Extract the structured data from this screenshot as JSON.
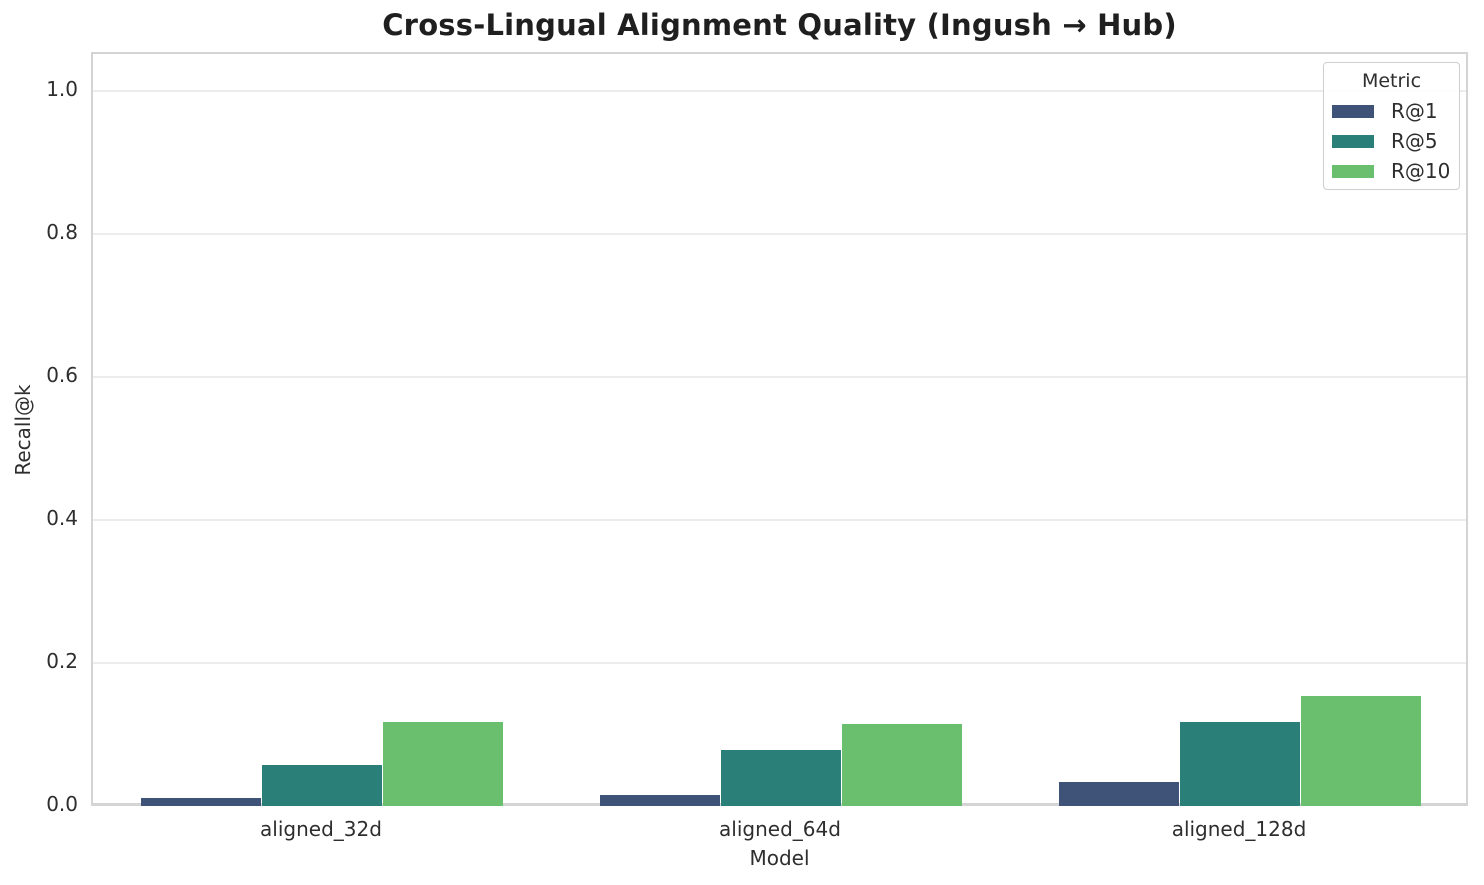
{
  "chart_data": {
    "type": "bar",
    "title": "Cross-Lingual Alignment Quality (Ingush → Hub)",
    "xlabel": "Model",
    "ylabel": "Recall@k",
    "categories": [
      "aligned_32d",
      "aligned_64d",
      "aligned_128d"
    ],
    "series": [
      {
        "name": "R@1",
        "color": "#3f5278",
        "values": [
          0.011,
          0.015,
          0.034
        ]
      },
      {
        "name": "R@5",
        "color": "#2a8078",
        "values": [
          0.058,
          0.079,
          0.118
        ]
      },
      {
        "name": "R@10",
        "color": "#69bf6d",
        "values": [
          0.118,
          0.114,
          0.154
        ]
      }
    ],
    "ylim": [
      0.0,
      1.05
    ],
    "yticks": [
      0.0,
      0.2,
      0.4,
      0.6,
      0.8,
      1.0
    ],
    "ytick_labels": [
      "0.0",
      "0.2",
      "0.4",
      "0.6",
      "0.8",
      "1.0"
    ],
    "legend_title": "Metric",
    "legend_position": "upper right",
    "grid": "horizontal",
    "colors": {
      "background": "#ffffff",
      "gridline": "#ececec",
      "spine": "#d4d4d4",
      "text": "#2e2e2e",
      "title_text": "#1f1f1f"
    }
  }
}
